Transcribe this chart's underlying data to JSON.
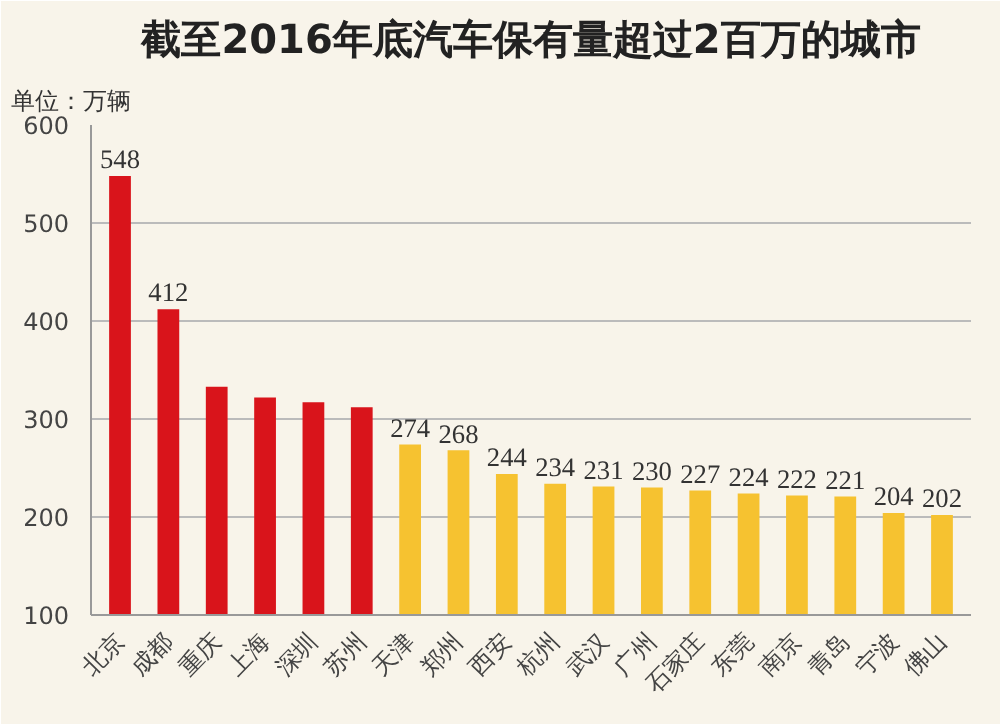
{
  "chart_data": {
    "type": "bar",
    "title": "截至2016年底汽车保有量超过2百万的城市",
    "ylabel": "单位：万辆",
    "categories": [
      "北京",
      "成都",
      "重庆",
      "上海",
      "深圳",
      "苏州",
      "天津",
      "郑州",
      "西安",
      "杭州",
      "武汉",
      "广州",
      "石家庄",
      "东莞",
      "南京",
      "青岛",
      "宁波",
      "佛山"
    ],
    "values": [
      548,
      412,
      333,
      322,
      317,
      312,
      274,
      268,
      244,
      234,
      231,
      230,
      227,
      224,
      222,
      221,
      204,
      202
    ],
    "value_labels": [
      "548",
      "412",
      null,
      null,
      null,
      null,
      "274",
      "268",
      "244",
      "234",
      "231",
      "230",
      "227",
      "224",
      "222",
      "221",
      "204",
      "202"
    ],
    "colors": [
      "#d9141b",
      "#d9141b",
      "#d9141b",
      "#d9141b",
      "#d9141b",
      "#d9141b",
      "#f6c230",
      "#f6c230",
      "#f6c230",
      "#f6c230",
      "#f6c230",
      "#f6c230",
      "#f6c230",
      "#f6c230",
      "#f6c230",
      "#f6c230",
      "#f6c230",
      "#f6c230"
    ],
    "ylim": [
      100,
      600
    ],
    "yticks": [
      100,
      200,
      300,
      400,
      500,
      600
    ],
    "grid": "y"
  }
}
